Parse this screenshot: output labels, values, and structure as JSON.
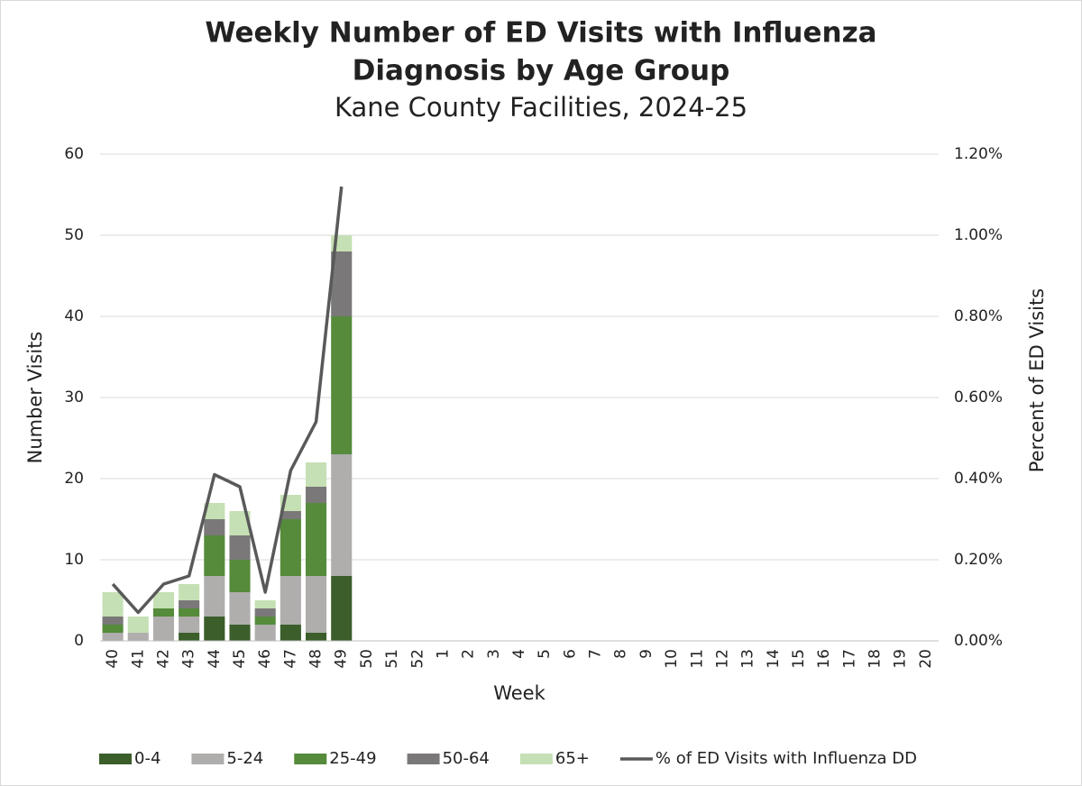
{
  "chart_data": {
    "type": "bar",
    "stacked": true,
    "title": [
      "Weekly Number of ED Visits with Influenza",
      "Diagnosis by Age Group"
    ],
    "subtitle": "Kane County Facilities, 2024-25",
    "x_label": "Week",
    "y_label": "Number Visits",
    "y2_label": "Percent of ED Visits",
    "categories": [
      "40",
      "41",
      "42",
      "43",
      "44",
      "45",
      "46",
      "47",
      "48",
      "49",
      "50",
      "51",
      "52",
      "1",
      "2",
      "3",
      "4",
      "5",
      "6",
      "7",
      "8",
      "9",
      "10",
      "11",
      "12",
      "13",
      "14",
      "15",
      "16",
      "17",
      "18",
      "19",
      "20"
    ],
    "series": [
      {
        "name": "0-4",
        "color": "#3b5e2b",
        "values": [
          0,
          0,
          0,
          1,
          3,
          2,
          0,
          2,
          1,
          8,
          null,
          null,
          null,
          null,
          null,
          null,
          null,
          null,
          null,
          null,
          null,
          null,
          null,
          null,
          null,
          null,
          null,
          null,
          null,
          null,
          null,
          null,
          null
        ]
      },
      {
        "name": "5-24",
        "color": "#b0adad",
        "values": [
          1,
          1,
          3,
          2,
          5,
          4,
          2,
          6,
          7,
          15,
          null,
          null,
          null,
          null,
          null,
          null,
          null,
          null,
          null,
          null,
          null,
          null,
          null,
          null,
          null,
          null,
          null,
          null,
          null,
          null,
          null,
          null,
          null
        ]
      },
      {
        "name": "25-49",
        "color": "#558b3a",
        "values": [
          1,
          0,
          1,
          1,
          5,
          4,
          1,
          7,
          9,
          17,
          null,
          null,
          null,
          null,
          null,
          null,
          null,
          null,
          null,
          null,
          null,
          null,
          null,
          null,
          null,
          null,
          null,
          null,
          null,
          null,
          null,
          null,
          null
        ]
      },
      {
        "name": "50-64",
        "color": "#7a7878",
        "values": [
          1,
          0,
          0,
          1,
          2,
          3,
          1,
          1,
          2,
          8,
          null,
          null,
          null,
          null,
          null,
          null,
          null,
          null,
          null,
          null,
          null,
          null,
          null,
          null,
          null,
          null,
          null,
          null,
          null,
          null,
          null,
          null,
          null
        ]
      },
      {
        "name": "65+",
        "color": "#c5e0b4",
        "values": [
          3,
          2,
          2,
          2,
          2,
          3,
          1,
          2,
          3,
          2,
          null,
          null,
          null,
          null,
          null,
          null,
          null,
          null,
          null,
          null,
          null,
          null,
          null,
          null,
          null,
          null,
          null,
          null,
          null,
          null,
          null,
          null,
          null
        ]
      },
      {
        "name": "% of ED Visits with Influenza DD",
        "color": "#595959",
        "type": "line",
        "axis": "y2",
        "values": [
          0.14,
          0.07,
          0.14,
          0.16,
          0.41,
          0.38,
          0.12,
          0.42,
          0.54,
          1.12,
          null,
          null,
          null,
          null,
          null,
          null,
          null,
          null,
          null,
          null,
          null,
          null,
          null,
          null,
          null,
          null,
          null,
          null,
          null,
          null,
          null,
          null,
          null
        ]
      }
    ],
    "ylim": [
      0,
      60
    ],
    "yticks": [
      0,
      10,
      20,
      30,
      40,
      50,
      60
    ],
    "y2lim": [
      0,
      1.2
    ],
    "y2ticks": [
      {
        "value": 0,
        "label": "0.00%"
      },
      {
        "value": 0.2,
        "label": "0.20%"
      },
      {
        "value": 0.4,
        "label": "0.40%"
      },
      {
        "value": 0.6,
        "label": "0.60%"
      },
      {
        "value": 0.8,
        "label": "0.80%"
      },
      {
        "value": 1.0,
        "label": "1.00%"
      },
      {
        "value": 1.2,
        "label": "1.20%"
      }
    ],
    "grid": true,
    "legend": "bottom"
  }
}
